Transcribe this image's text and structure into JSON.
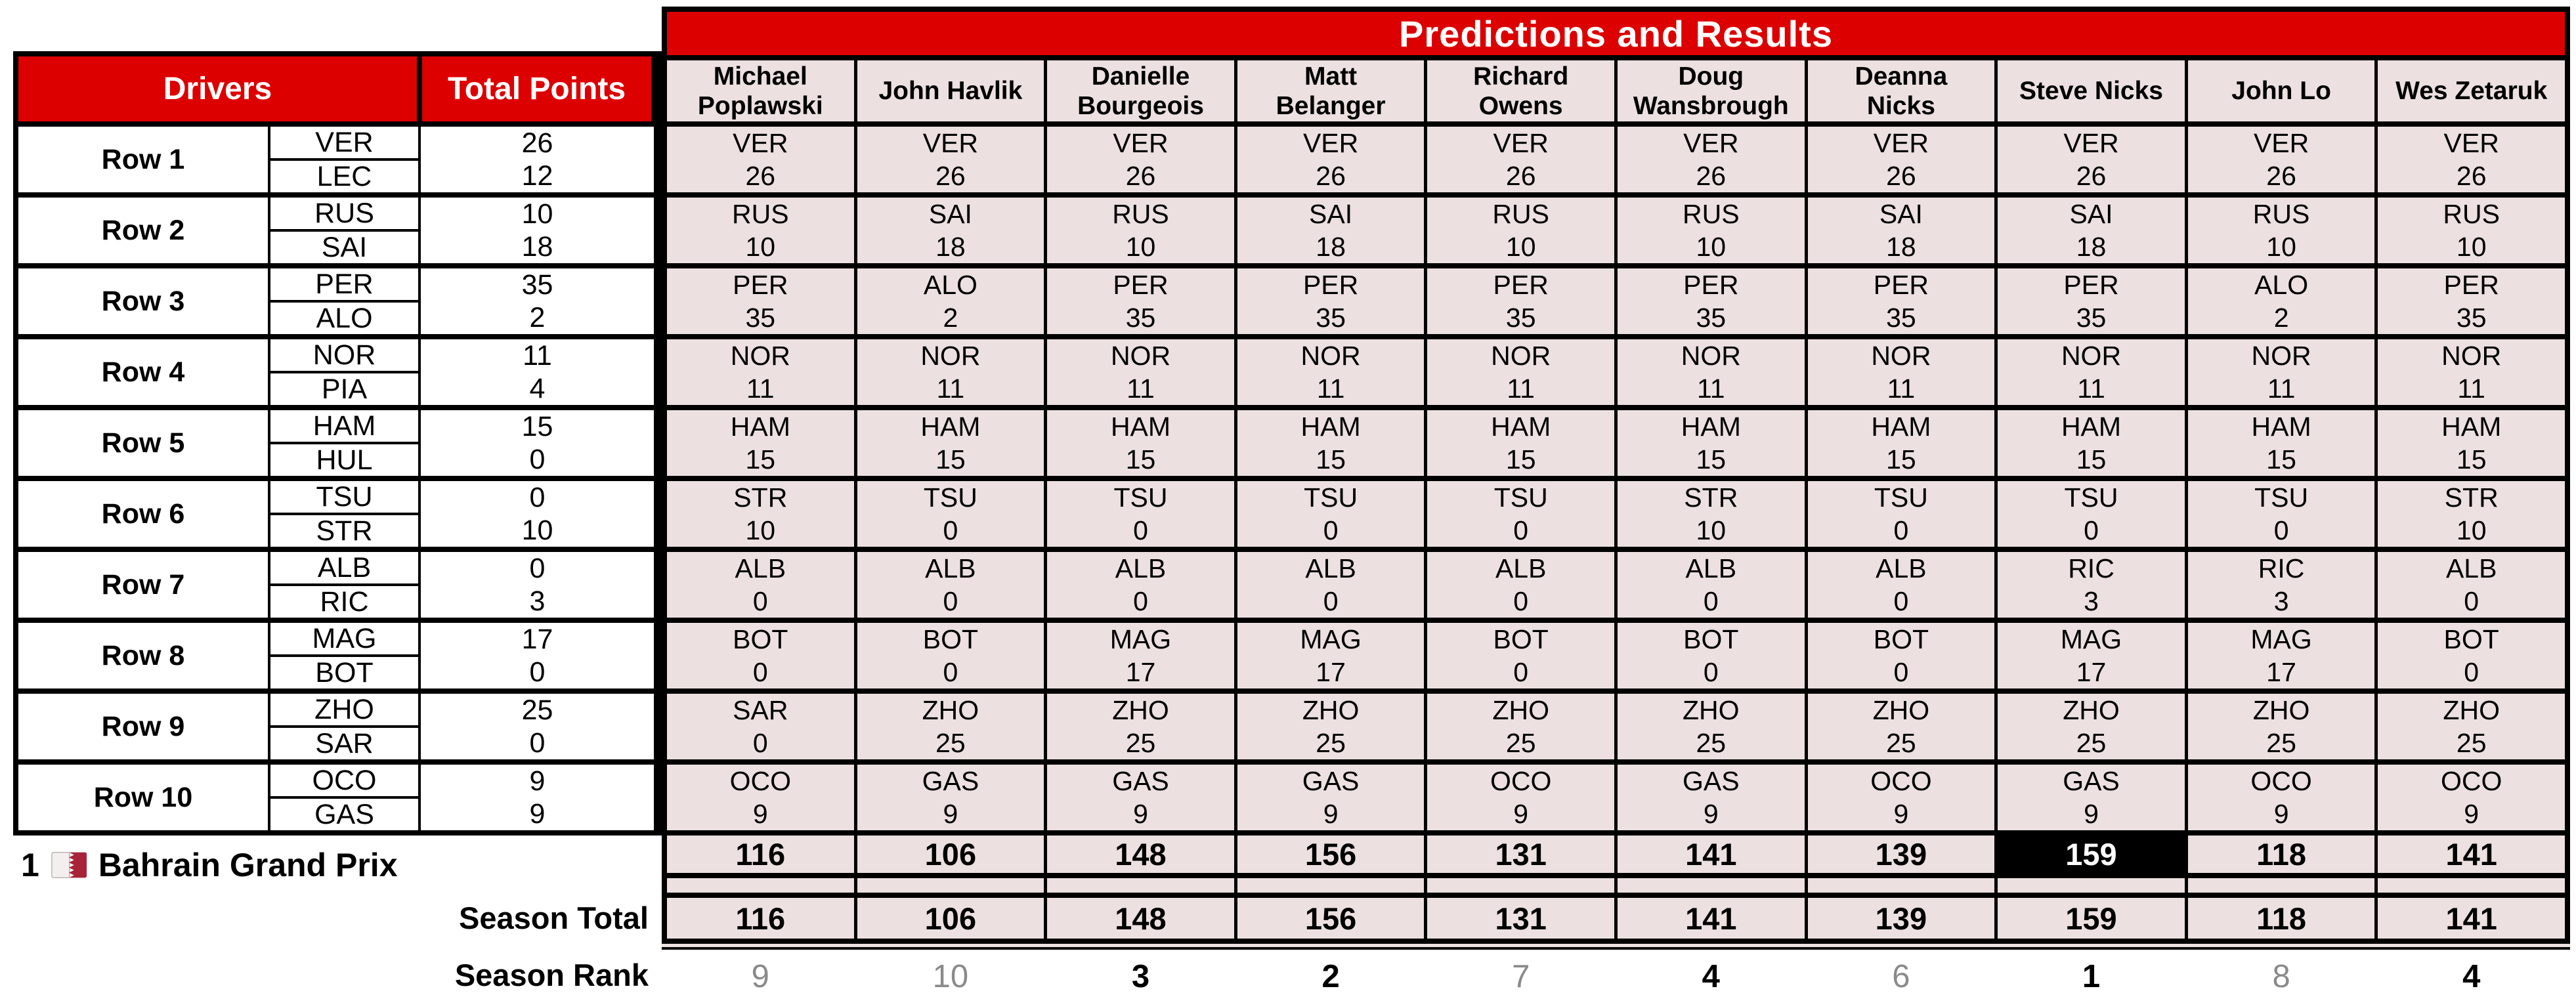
{
  "banner": {
    "title": "Predictions and Results"
  },
  "left_table": {
    "drivers_header": "Drivers",
    "total_points_header": "Total Points",
    "rows": [
      {
        "label": "Row 1",
        "top": {
          "code": "VER",
          "points": "26"
        },
        "bottom": {
          "code": "LEC",
          "points": "12"
        }
      },
      {
        "label": "Row 2",
        "top": {
          "code": "RUS",
          "points": "10"
        },
        "bottom": {
          "code": "SAI",
          "points": "18"
        }
      },
      {
        "label": "Row 3",
        "top": {
          "code": "PER",
          "points": "35"
        },
        "bottom": {
          "code": "ALO",
          "points": "2"
        }
      },
      {
        "label": "Row 4",
        "top": {
          "code": "NOR",
          "points": "11"
        },
        "bottom": {
          "code": "PIA",
          "points": "4"
        }
      },
      {
        "label": "Row 5",
        "top": {
          "code": "HAM",
          "points": "15"
        },
        "bottom": {
          "code": "HUL",
          "points": "0"
        }
      },
      {
        "label": "Row 6",
        "top": {
          "code": "TSU",
          "points": "0"
        },
        "bottom": {
          "code": "STR",
          "points": "10"
        }
      },
      {
        "label": "Row 7",
        "top": {
          "code": "ALB",
          "points": "0"
        },
        "bottom": {
          "code": "RIC",
          "points": "3"
        }
      },
      {
        "label": "Row 8",
        "top": {
          "code": "MAG",
          "points": "17"
        },
        "bottom": {
          "code": "BOT",
          "points": "0"
        }
      },
      {
        "label": "Row 9",
        "top": {
          "code": "ZHO",
          "points": "25"
        },
        "bottom": {
          "code": "SAR",
          "points": "0"
        }
      },
      {
        "label": "Row 10",
        "top": {
          "code": "OCO",
          "points": "9"
        },
        "bottom": {
          "code": "GAS",
          "points": "9"
        }
      }
    ]
  },
  "players": [
    {
      "name": "Michael Poplawski",
      "name_lines": [
        "Michael",
        "Poplawski"
      ],
      "picks": [
        [
          "VER",
          "26"
        ],
        [
          "RUS",
          "10"
        ],
        [
          "PER",
          "35"
        ],
        [
          "NOR",
          "11"
        ],
        [
          "HAM",
          "15"
        ],
        [
          "STR",
          "10"
        ],
        [
          "ALB",
          "0"
        ],
        [
          "BOT",
          "0"
        ],
        [
          "SAR",
          "0"
        ],
        [
          "OCO",
          "9"
        ]
      ],
      "race_total": "116",
      "season_total": "116",
      "season_rank": "9",
      "rank_style": "muted",
      "highlight": false
    },
    {
      "name": "John Havlik",
      "name_lines": [
        "John Havlik"
      ],
      "picks": [
        [
          "VER",
          "26"
        ],
        [
          "SAI",
          "18"
        ],
        [
          "ALO",
          "2"
        ],
        [
          "NOR",
          "11"
        ],
        [
          "HAM",
          "15"
        ],
        [
          "TSU",
          "0"
        ],
        [
          "ALB",
          "0"
        ],
        [
          "BOT",
          "0"
        ],
        [
          "ZHO",
          "25"
        ],
        [
          "GAS",
          "9"
        ]
      ],
      "race_total": "106",
      "season_total": "106",
      "season_rank": "10",
      "rank_style": "muted",
      "highlight": false
    },
    {
      "name": "Danielle Bourgeois",
      "name_lines": [
        "Danielle",
        "Bourgeois"
      ],
      "picks": [
        [
          "VER",
          "26"
        ],
        [
          "RUS",
          "10"
        ],
        [
          "PER",
          "35"
        ],
        [
          "NOR",
          "11"
        ],
        [
          "HAM",
          "15"
        ],
        [
          "TSU",
          "0"
        ],
        [
          "ALB",
          "0"
        ],
        [
          "MAG",
          "17"
        ],
        [
          "ZHO",
          "25"
        ],
        [
          "GAS",
          "9"
        ]
      ],
      "race_total": "148",
      "season_total": "148",
      "season_rank": "3",
      "rank_style": "bold",
      "highlight": false
    },
    {
      "name": "Matt Belanger",
      "name_lines": [
        "Matt",
        "Belanger"
      ],
      "picks": [
        [
          "VER",
          "26"
        ],
        [
          "SAI",
          "18"
        ],
        [
          "PER",
          "35"
        ],
        [
          "NOR",
          "11"
        ],
        [
          "HAM",
          "15"
        ],
        [
          "TSU",
          "0"
        ],
        [
          "ALB",
          "0"
        ],
        [
          "MAG",
          "17"
        ],
        [
          "ZHO",
          "25"
        ],
        [
          "GAS",
          "9"
        ]
      ],
      "race_total": "156",
      "season_total": "156",
      "season_rank": "2",
      "rank_style": "bold",
      "highlight": false
    },
    {
      "name": "Richard Owens",
      "name_lines": [
        "Richard",
        "Owens"
      ],
      "picks": [
        [
          "VER",
          "26"
        ],
        [
          "RUS",
          "10"
        ],
        [
          "PER",
          "35"
        ],
        [
          "NOR",
          "11"
        ],
        [
          "HAM",
          "15"
        ],
        [
          "TSU",
          "0"
        ],
        [
          "ALB",
          "0"
        ],
        [
          "BOT",
          "0"
        ],
        [
          "ZHO",
          "25"
        ],
        [
          "OCO",
          "9"
        ]
      ],
      "race_total": "131",
      "season_total": "131",
      "season_rank": "7",
      "rank_style": "muted",
      "highlight": false
    },
    {
      "name": "Doug Wansbrough",
      "name_lines": [
        "Doug",
        "Wansbrough"
      ],
      "picks": [
        [
          "VER",
          "26"
        ],
        [
          "RUS",
          "10"
        ],
        [
          "PER",
          "35"
        ],
        [
          "NOR",
          "11"
        ],
        [
          "HAM",
          "15"
        ],
        [
          "STR",
          "10"
        ],
        [
          "ALB",
          "0"
        ],
        [
          "BOT",
          "0"
        ],
        [
          "ZHO",
          "25"
        ],
        [
          "GAS",
          "9"
        ]
      ],
      "race_total": "141",
      "season_total": "141",
      "season_rank": "4",
      "rank_style": "bold",
      "highlight": false
    },
    {
      "name": "Deanna Nicks",
      "name_lines": [
        "Deanna",
        "Nicks"
      ],
      "picks": [
        [
          "VER",
          "26"
        ],
        [
          "SAI",
          "18"
        ],
        [
          "PER",
          "35"
        ],
        [
          "NOR",
          "11"
        ],
        [
          "HAM",
          "15"
        ],
        [
          "TSU",
          "0"
        ],
        [
          "ALB",
          "0"
        ],
        [
          "BOT",
          "0"
        ],
        [
          "ZHO",
          "25"
        ],
        [
          "OCO",
          "9"
        ]
      ],
      "race_total": "139",
      "season_total": "139",
      "season_rank": "6",
      "rank_style": "muted",
      "highlight": false
    },
    {
      "name": "Steve Nicks",
      "name_lines": [
        "Steve Nicks"
      ],
      "picks": [
        [
          "VER",
          "26"
        ],
        [
          "SAI",
          "18"
        ],
        [
          "PER",
          "35"
        ],
        [
          "NOR",
          "11"
        ],
        [
          "HAM",
          "15"
        ],
        [
          "TSU",
          "0"
        ],
        [
          "RIC",
          "3"
        ],
        [
          "MAG",
          "17"
        ],
        [
          "ZHO",
          "25"
        ],
        [
          "GAS",
          "9"
        ]
      ],
      "race_total": "159",
      "season_total": "159",
      "season_rank": "1",
      "rank_style": "bold",
      "highlight": true
    },
    {
      "name": "John Lo",
      "name_lines": [
        "John Lo"
      ],
      "picks": [
        [
          "VER",
          "26"
        ],
        [
          "RUS",
          "10"
        ],
        [
          "ALO",
          "2"
        ],
        [
          "NOR",
          "11"
        ],
        [
          "HAM",
          "15"
        ],
        [
          "TSU",
          "0"
        ],
        [
          "RIC",
          "3"
        ],
        [
          "MAG",
          "17"
        ],
        [
          "ZHO",
          "25"
        ],
        [
          "OCO",
          "9"
        ]
      ],
      "race_total": "118",
      "season_total": "118",
      "season_rank": "8",
      "rank_style": "muted",
      "highlight": false
    },
    {
      "name": "Wes Zetaruk",
      "name_lines": [
        "Wes Zetaruk"
      ],
      "picks": [
        [
          "VER",
          "26"
        ],
        [
          "RUS",
          "10"
        ],
        [
          "PER",
          "35"
        ],
        [
          "NOR",
          "11"
        ],
        [
          "HAM",
          "15"
        ],
        [
          "STR",
          "10"
        ],
        [
          "ALB",
          "0"
        ],
        [
          "BOT",
          "0"
        ],
        [
          "ZHO",
          "25"
        ],
        [
          "OCO",
          "9"
        ]
      ],
      "race_total": "141",
      "season_total": "141",
      "season_rank": "4",
      "rank_style": "bold",
      "highlight": false
    }
  ],
  "footer": {
    "race_number": "1",
    "race_name": "Bahrain Grand Prix",
    "flag_icon": "bahrain-flag",
    "season_total_label": "Season Total",
    "season_rank_label": "Season Rank"
  },
  "colors": {
    "header_red": "#dd0000",
    "cell_pink": "#ece0e0",
    "highlight_black": "#000000",
    "highlight_text": "#ffffff",
    "rank_gray": "#8a8a8a"
  }
}
